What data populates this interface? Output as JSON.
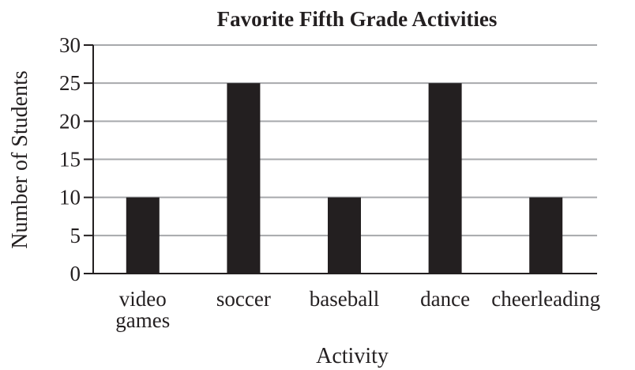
{
  "chart_data": {
    "type": "bar",
    "title": "Favorite Fifth Grade Activities",
    "xlabel": "Activity",
    "ylabel": "Number of Students",
    "categories": [
      [
        "video",
        "games"
      ],
      [
        "soccer"
      ],
      [
        "baseball"
      ],
      [
        "dance"
      ],
      [
        "cheerleading"
      ]
    ],
    "values": [
      10,
      25,
      10,
      25,
      10
    ],
    "ylim": [
      0,
      30
    ],
    "yticks": [
      0,
      5,
      10,
      15,
      20,
      25,
      30
    ],
    "grid": true,
    "bar_color": "#231f20",
    "grid_color": "#a7a9ac",
    "axis_color": "#231f20"
  }
}
